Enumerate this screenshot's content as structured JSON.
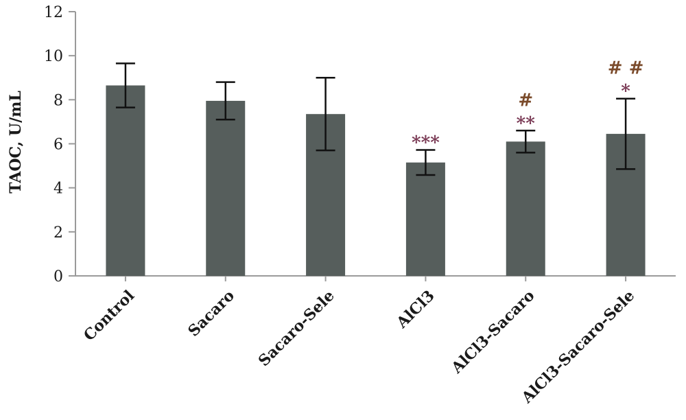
{
  "chart_data": {
    "type": "bar",
    "title": "",
    "xlabel": "",
    "ylabel": "TAOC, U/mL",
    "ylim": [
      0,
      12
    ],
    "yticks": [
      "0",
      "2",
      "4",
      "6",
      "8",
      "10",
      "12"
    ],
    "grid": false,
    "categories": [
      "Control",
      "Sacaro",
      "Sacaro-Sele",
      "AlCl3",
      "AlCl3-Sacaro",
      "AlCl3-Sacaro-Sele"
    ],
    "values": [
      8.65,
      7.95,
      7.35,
      5.15,
      6.1,
      6.45
    ],
    "errors": [
      1.0,
      0.85,
      1.65,
      0.57,
      0.5,
      1.6
    ],
    "bar_color": "#565e5c",
    "annotations": [
      {
        "category_index": 3,
        "lines": [
          "***"
        ]
      },
      {
        "category_index": 4,
        "lines": [
          "#",
          "**"
        ]
      },
      {
        "category_index": 5,
        "lines": [
          "# #",
          "*"
        ]
      }
    ],
    "annotation_colors": {
      "#": "#7a4a2a",
      "*": "#7a3a55"
    }
  }
}
